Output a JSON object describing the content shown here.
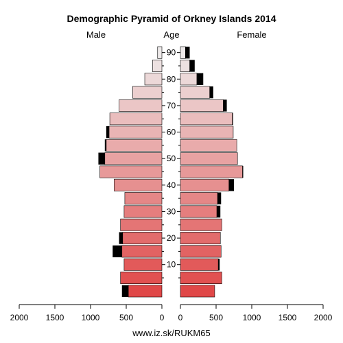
{
  "chart_data": {
    "type": "bar",
    "title": "Demographic Pyramid of Orkney Islands 2014",
    "left_label": "Male",
    "center_label": "Age",
    "right_label": "Female",
    "caption": "www.iz.sk/RUKM65",
    "xlim": [
      0,
      2000
    ],
    "x_ticks": [
      "2000",
      "1500",
      "1000",
      "500",
      "0",
      "0",
      "500",
      "1000",
      "1500",
      "2000"
    ],
    "age_ticks": [
      "10",
      "20",
      "30",
      "40",
      "50",
      "60",
      "70",
      "80",
      "90"
    ],
    "age_tick_values": [
      10,
      20,
      30,
      40,
      50,
      60,
      70,
      80,
      90
    ],
    "age_groups": [
      "0-4",
      "5-9",
      "10-14",
      "15-19",
      "20-24",
      "25-29",
      "30-34",
      "35-39",
      "40-44",
      "45-49",
      "50-54",
      "55-59",
      "60-64",
      "65-69",
      "70-74",
      "75-79",
      "80-84",
      "85-89",
      "90+"
    ],
    "series": [
      {
        "name": "Male",
        "values": [
          470,
          580,
          530,
          560,
          550,
          580,
          530,
          520,
          670,
          870,
          800,
          780,
          740,
          730,
          600,
          410,
          240,
          130,
          60
        ],
        "surplus": [
          90,
          0,
          0,
          130,
          50,
          0,
          0,
          0,
          0,
          0,
          90,
          20,
          40,
          0,
          0,
          0,
          0,
          0,
          0
        ]
      },
      {
        "name": "Female",
        "values": [
          480,
          580,
          530,
          570,
          560,
          580,
          510,
          520,
          680,
          870,
          800,
          790,
          740,
          730,
          600,
          410,
          230,
          130,
          70
        ],
        "surplus": [
          0,
          0,
          20,
          0,
          0,
          0,
          50,
          50,
          70,
          10,
          0,
          0,
          0,
          10,
          50,
          50,
          90,
          70,
          60
        ]
      }
    ],
    "bar_colors": {
      "light": "#eeeaea",
      "dark": "#e04848",
      "surplus": "#000000"
    }
  }
}
